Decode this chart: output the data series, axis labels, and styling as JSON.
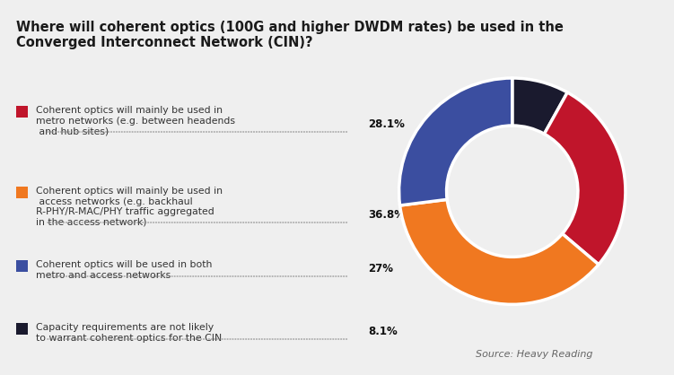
{
  "title": "Where will coherent optics (100G and higher DWDM rates) be used in the\nConverged Interconnect Network (CIN)?",
  "slices": [
    28.1,
    36.8,
    27.0,
    8.1
  ],
  "colors": [
    "#C0152B",
    "#F07820",
    "#3B4EA0",
    "#1A1A2E"
  ],
  "labels": [
    "Coherent optics will mainly be used in\nmetro networks (e.g. between headends\n and hub sites) ",
    "Coherent optics will mainly be used in\n access networks (e.g. backhaul\nR-PHY/R-MAC/PHY traffic aggregated\nin the access network) ",
    "Coherent optics will be used in both\nmetro and access networks ",
    "Capacity requirements are not likely\nto warrant coherent optics for the CIN "
  ],
  "percentages": [
    "28.1%",
    "36.8%",
    "27%",
    "8.1%"
  ],
  "source": "Source: Heavy Reading",
  "background_color": "#EFEFEF",
  "donut_width": 0.42
}
